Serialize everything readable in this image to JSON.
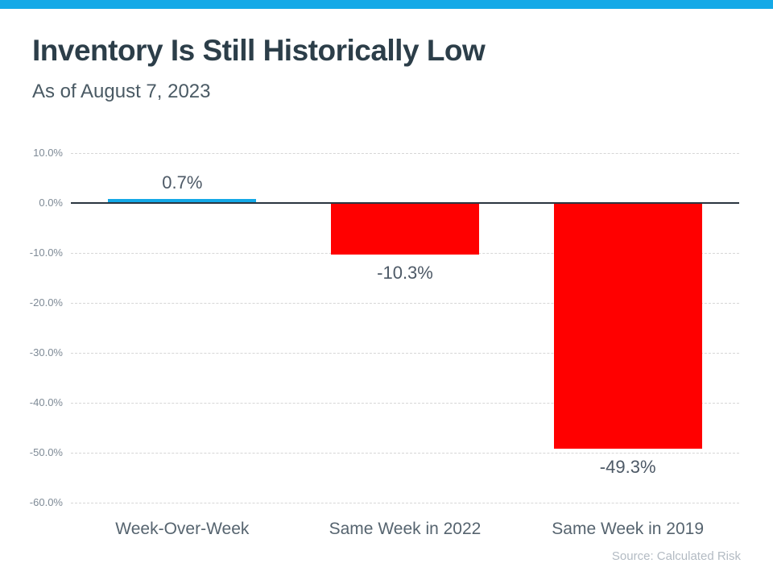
{
  "header": {
    "title": "Inventory Is Still Historically Low",
    "subtitle": "As of August 7, 2023"
  },
  "footer": {
    "source": "Source: Calculated Risk"
  },
  "theme": {
    "banner_color": "#14A9E7",
    "positive_bar_color": "#14A9E7",
    "negative_bar_color": "#FF0000",
    "zero_line_color": "#2B3540"
  },
  "chart_data": {
    "type": "bar",
    "title": "Inventory Is Still Historically Low",
    "subtitle": "As of August 7, 2023",
    "categories": [
      "Week-Over-Week",
      "Same Week in 2022",
      "Same Week in 2019"
    ],
    "values": [
      0.7,
      -10.3,
      -49.3
    ],
    "value_labels": [
      "0.7%",
      "-10.3%",
      "-49.3%"
    ],
    "bar_colors": [
      "#14A9E7",
      "#FF0000",
      "#FF0000"
    ],
    "xlabel": "",
    "ylabel": "",
    "ylim": [
      -60,
      10
    ],
    "yticks": [
      10,
      0,
      -10,
      -20,
      -30,
      -40,
      -50,
      -60
    ],
    "ytick_labels": [
      "10.0%",
      "0.0%",
      "-10.0%",
      "-20.0%",
      "-30.0%",
      "-40.0%",
      "-50.0%",
      "-60.0%"
    ],
    "grid": true,
    "legend": false,
    "source": "Source: Calculated Risk"
  }
}
